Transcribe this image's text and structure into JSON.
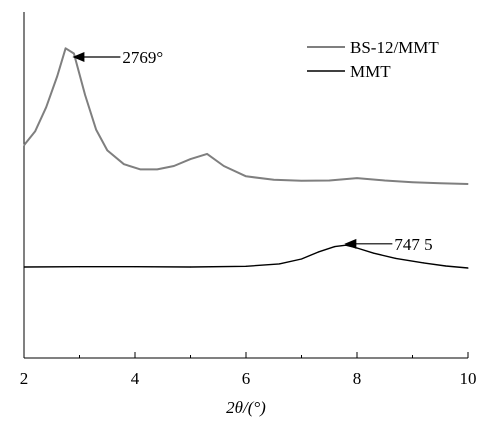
{
  "chart_data": {
    "type": "line",
    "xlabel": "2θ/(°)",
    "ylabel": "",
    "xlim": [
      2,
      10
    ],
    "x_ticks": [
      "2",
      "4",
      "6",
      "8",
      "10"
    ],
    "grid": false,
    "legend_position": "top-right",
    "colors": {
      "BS-12/MMT": "#7f7f7f",
      "MMT": "#000000"
    },
    "series": [
      {
        "name": "BS-12/MMT",
        "x": [
          2.0,
          2.2,
          2.4,
          2.6,
          2.75,
          2.9,
          3.1,
          3.3,
          3.5,
          3.8,
          4.1,
          4.4,
          4.7,
          5.0,
          5.3,
          5.6,
          6.0,
          6.5,
          7.0,
          7.5,
          8.0,
          8.5,
          9.0,
          9.5,
          10.0
        ],
        "y": [
          0.615,
          0.655,
          0.725,
          0.815,
          0.895,
          0.88,
          0.76,
          0.66,
          0.6,
          0.56,
          0.545,
          0.545,
          0.555,
          0.575,
          0.59,
          0.555,
          0.525,
          0.515,
          0.512,
          0.513,
          0.52,
          0.513,
          0.508,
          0.505,
          0.503
        ]
      },
      {
        "name": "MMT",
        "x": [
          2.0,
          3.0,
          4.0,
          5.0,
          6.0,
          6.6,
          7.0,
          7.3,
          7.6,
          7.8,
          8.0,
          8.3,
          8.7,
          9.2,
          9.6,
          10.0
        ],
        "y": [
          0.263,
          0.264,
          0.264,
          0.263,
          0.265,
          0.272,
          0.286,
          0.306,
          0.322,
          0.326,
          0.318,
          0.303,
          0.288,
          0.275,
          0.266,
          0.26
        ]
      }
    ],
    "annotations": [
      {
        "text": "2769°",
        "x": 2.8,
        "y": 0.87
      },
      {
        "text": "747 5",
        "x": 7.7,
        "y": 0.33
      }
    ]
  }
}
